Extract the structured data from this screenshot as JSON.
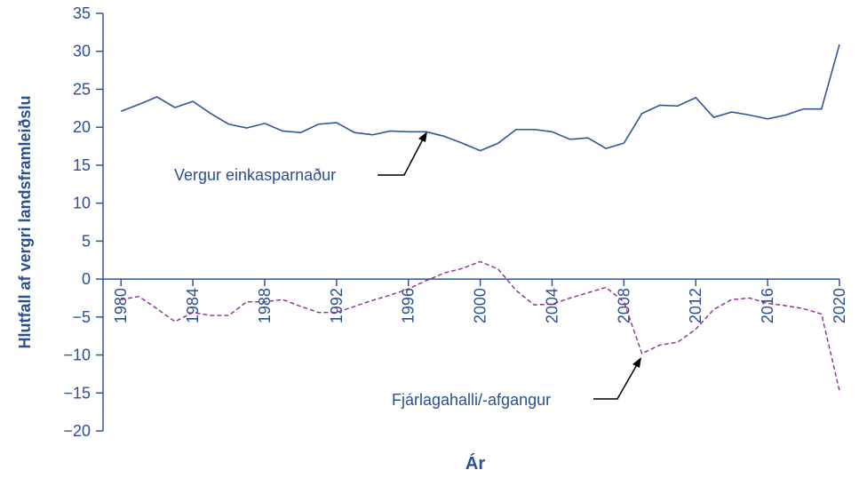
{
  "chart_data": {
    "type": "line",
    "x_label": "Ár",
    "y_label": "Hlutfall af vergri landsframleiðslu",
    "x": [
      1980,
      1981,
      1982,
      1983,
      1984,
      1985,
      1986,
      1987,
      1988,
      1989,
      1990,
      1991,
      1992,
      1993,
      1994,
      1995,
      1996,
      1997,
      1998,
      1999,
      2000,
      2001,
      2002,
      2003,
      2004,
      2005,
      2006,
      2007,
      2008,
      2009,
      2010,
      2011,
      2012,
      2013,
      2014,
      2015,
      2016,
      2017,
      2018,
      2019,
      2020
    ],
    "series": [
      {
        "name": "Vergur einkasparnaður",
        "color": "#2f5597",
        "dashed": false,
        "values": [
          22.1,
          23.0,
          24.0,
          22.6,
          23.4,
          21.8,
          20.4,
          19.9,
          20.5,
          19.5,
          19.3,
          20.4,
          20.6,
          19.3,
          19.0,
          19.5,
          19.4,
          19.4,
          18.8,
          17.9,
          16.9,
          17.9,
          19.7,
          19.7,
          19.4,
          18.4,
          18.6,
          17.2,
          17.9,
          21.8,
          22.9,
          22.8,
          23.9,
          21.3,
          22.0,
          21.6,
          21.1,
          21.6,
          22.4,
          22.4,
          30.9
        ]
      },
      {
        "name": "Fjárlagahalli/-afgangur",
        "color": "#8e2c8e",
        "dashed": true,
        "values": [
          -2.7,
          -2.3,
          -3.9,
          -5.6,
          -4.4,
          -4.8,
          -4.8,
          -3.0,
          -3.0,
          -2.7,
          -3.6,
          -4.4,
          -4.4,
          -3.6,
          -2.8,
          -2.1,
          -1.3,
          -0.2,
          0.8,
          1.4,
          2.3,
          1.3,
          -1.5,
          -3.4,
          -3.3,
          -2.5,
          -1.8,
          -1.1,
          -3.0,
          -9.8,
          -8.7,
          -8.3,
          -6.6,
          -4.0,
          -2.7,
          -2.5,
          -3.2,
          -3.5,
          -3.9,
          -4.6,
          -14.7
        ]
      }
    ],
    "xlim": [
      1979,
      2020
    ],
    "xticks": [
      1980,
      1984,
      1988,
      1992,
      1996,
      2000,
      2004,
      2008,
      2012,
      2016,
      2020
    ],
    "ylim": [
      -20,
      35
    ],
    "yticks": [
      {
        "value": -20,
        "label": "−20"
      },
      {
        "value": -15,
        "label": "−15"
      },
      {
        "value": -10,
        "label": "−10"
      },
      {
        "value": -5,
        "label": "−5"
      },
      0,
      5,
      10,
      15,
      20,
      25,
      30,
      35
    ],
    "grid": false
  }
}
